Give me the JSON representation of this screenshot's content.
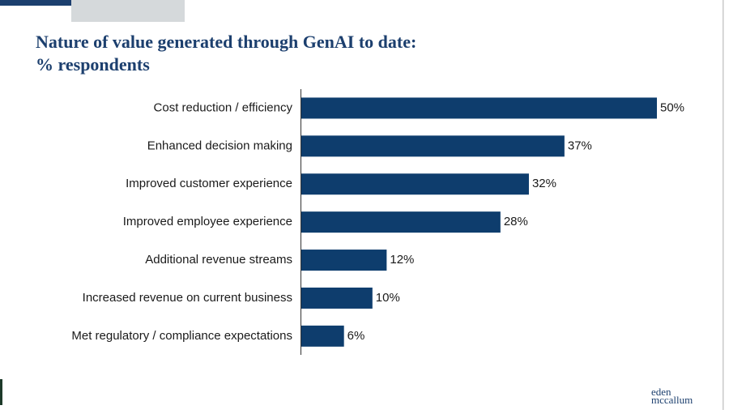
{
  "chart_data": {
    "type": "bar",
    "orientation": "horizontal",
    "title": [
      "Nature of value generated through GenAI to date:",
      "% respondents"
    ],
    "categories": [
      "Cost reduction / efficiency",
      "Enhanced decision making",
      "Improved customer experience",
      "Improved employee experience",
      "Additional revenue streams",
      "Increased revenue on current business",
      "Met regulatory / compliance expectations"
    ],
    "values": [
      50,
      37,
      32,
      28,
      12,
      10,
      6
    ],
    "value_labels": [
      "50%",
      "37%",
      "32%",
      "28%",
      "12%",
      "10%",
      "6%"
    ],
    "color": "#0e3d6d"
  },
  "logo": {
    "line1": "eden",
    "line2": "mccallum"
  }
}
